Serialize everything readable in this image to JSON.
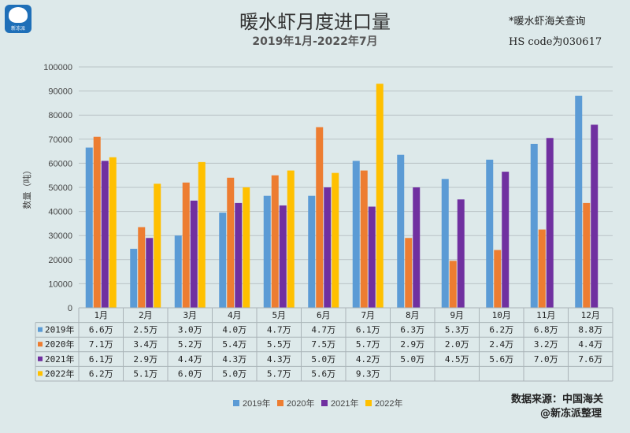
{
  "header": {
    "title": "暖水虾月度进口量",
    "subtitle": "2019年1月-2022年7月",
    "note_line1": "*暖水虾海关查询",
    "note_line2": "HS code为030617",
    "logo_text": "新冻派"
  },
  "footer": {
    "source_line1": "数据来源：中国海关",
    "source_line2": "@新冻派整理"
  },
  "chart_data": {
    "type": "bar",
    "title": "暖水虾月度进口量",
    "subtitle": "2019年1月-2022年7月",
    "ylabel": "数量（吨）",
    "ylim": [
      0,
      100000
    ],
    "yticks": [
      0,
      10000,
      20000,
      30000,
      40000,
      50000,
      60000,
      70000,
      80000,
      90000,
      100000
    ],
    "grid": true,
    "legend_position": "bottom",
    "categories": [
      "1月",
      "2月",
      "3月",
      "4月",
      "5月",
      "6月",
      "7月",
      "8月",
      "9月",
      "10月",
      "11月",
      "12月"
    ],
    "series": [
      {
        "name": "2019年",
        "color": "#5b9bd5",
        "values": [
          66500,
          24500,
          30000,
          39500,
          46500,
          46500,
          61000,
          63500,
          53500,
          61500,
          68000,
          88000
        ],
        "table": [
          "6.6万",
          "2.5万",
          "3.0万",
          "4.0万",
          "4.7万",
          "4.7万",
          "6.1万",
          "6.3万",
          "5.3万",
          "6.2万",
          "6.8万",
          "8.8万"
        ]
      },
      {
        "name": "2020年",
        "color": "#ed7d31",
        "values": [
          71000,
          33500,
          52000,
          54000,
          55000,
          75000,
          57000,
          29000,
          19500,
          24000,
          32500,
          43500
        ],
        "table": [
          "7.1万",
          "3.4万",
          "5.2万",
          "5.4万",
          "5.5万",
          "7.5万",
          "5.7万",
          "2.9万",
          "2.0万",
          "2.4万",
          "3.2万",
          "4.4万"
        ]
      },
      {
        "name": "2021年",
        "color": "#7030a0",
        "values": [
          61000,
          29000,
          44500,
          43500,
          42500,
          50000,
          42000,
          50000,
          45000,
          56500,
          70500,
          76000
        ],
        "table": [
          "6.1万",
          "2.9万",
          "4.4万",
          "4.3万",
          "4.3万",
          "5.0万",
          "4.2万",
          "5.0万",
          "4.5万",
          "5.6万",
          "7.0万",
          "7.6万"
        ]
      },
      {
        "name": "2022年",
        "color": "#ffc000",
        "values": [
          62500,
          51500,
          60500,
          50000,
          57000,
          56000,
          93000,
          null,
          null,
          null,
          null,
          null
        ],
        "table": [
          "6.2万",
          "5.1万",
          "6.0万",
          "5.0万",
          "5.7万",
          "5.6万",
          "9.3万",
          "",
          "",
          "",
          "",
          ""
        ]
      }
    ]
  }
}
